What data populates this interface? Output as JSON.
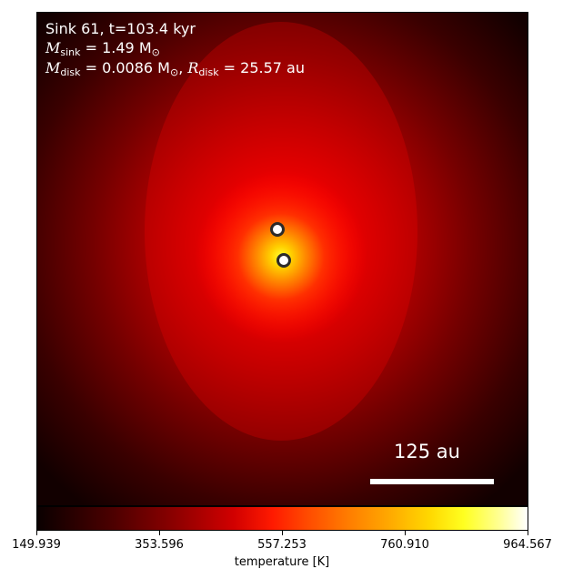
{
  "annotation": {
    "line1": "Sink 61, t=103.4 kyr",
    "msink_symbol": "M",
    "msink_sub": "sink",
    "msink_value": " = 1.49 M",
    "msink_unit_sub": "⊙",
    "mdisk_symbol": "M",
    "mdisk_sub": "disk",
    "mdisk_value": " = 0.0086 M",
    "mdisk_unit_sub": "⊙",
    "separator": ", ",
    "rdisk_symbol": "R",
    "rdisk_sub": "disk",
    "rdisk_value": " = 25.57 au"
  },
  "scalebar": {
    "label": "125 au"
  },
  "colorbar": {
    "label": "temperature [K]",
    "ticks": [
      "149.939",
      "353.596",
      "557.253",
      "760.910",
      "964.567"
    ],
    "range": [
      149.939,
      964.567
    ]
  },
  "sinks": [
    {
      "name": "sink-upper"
    },
    {
      "name": "sink-lower"
    }
  ],
  "colors": {
    "hot": "#ffff40",
    "mid": "#ff0000",
    "cold": "#0a0000"
  }
}
